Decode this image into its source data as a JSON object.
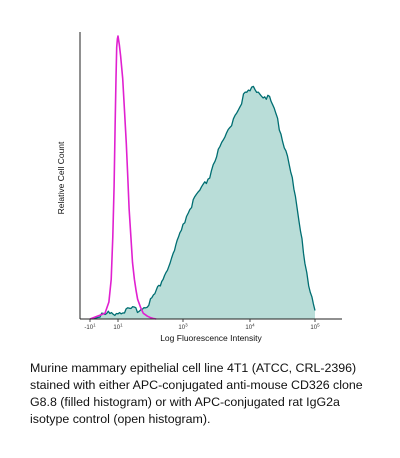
{
  "chart_data": {
    "type": "area",
    "title": "",
    "xlabel": "Log Fluorescence Intensity",
    "ylabel": "Relative Cell Count",
    "x_scale": "biexponential-log",
    "xlim": [
      -10,
      100000
    ],
    "ylim": [
      0,
      1
    ],
    "grid": false,
    "legend": "none",
    "x_ticks": [
      {
        "base": "-10",
        "exp": "1",
        "value": -10
      },
      {
        "base": "10",
        "exp": "1",
        "value": 10
      },
      {
        "base": "10",
        "exp": "3",
        "value": 1000
      },
      {
        "base": "10",
        "exp": "4",
        "value": 10000
      },
      {
        "base": "10",
        "exp": "5",
        "value": 100000
      }
    ],
    "series": [
      {
        "style": "open",
        "color": "#e020d0",
        "x": [
          -10,
          1,
          2,
          3,
          4,
          5,
          6,
          7,
          8,
          9,
          10,
          11,
          12,
          14,
          16,
          18,
          20,
          22,
          25,
          28,
          32,
          36,
          40,
          50,
          60,
          70,
          80,
          100,
          120,
          150
        ],
        "y": [
          0,
          0.02,
          0.06,
          0.14,
          0.29,
          0.47,
          0.68,
          0.85,
          0.96,
          0.99,
          1.0,
          0.97,
          0.93,
          0.85,
          0.73,
          0.62,
          0.5,
          0.39,
          0.29,
          0.2,
          0.14,
          0.1,
          0.07,
          0.04,
          0.02,
          0.015,
          0.01,
          0.005,
          0.002,
          0
        ]
      },
      {
        "style": "filled",
        "color": "#006e72",
        "fill": "#b9ddd8",
        "x": [
          -10,
          1,
          10,
          50,
          70,
          100,
          150,
          200,
          300,
          400,
          500,
          600,
          800,
          1000,
          1200,
          1500,
          2000,
          2500,
          3000,
          4000,
          5000,
          6000,
          7000,
          8000,
          10000,
          12000,
          15000,
          20000,
          25000,
          30000,
          40000,
          50000,
          60000,
          70000,
          80000,
          100000
        ],
        "y": [
          0,
          0.01,
          0.02,
          0.03,
          0.04,
          0.06,
          0.09,
          0.12,
          0.16,
          0.19,
          0.22,
          0.25,
          0.29,
          0.33,
          0.37,
          0.42,
          0.46,
          0.5,
          0.56,
          0.62,
          0.67,
          0.72,
          0.75,
          0.78,
          0.8,
          0.81,
          0.79,
          0.77,
          0.72,
          0.65,
          0.55,
          0.42,
          0.3,
          0.2,
          0.12,
          0.03
        ]
      }
    ]
  },
  "caption": "Murine mammary epithelial cell line 4T1 (ATCC, CRL-2396) stained with either APC-conjugated anti-mouse CD326 clone G8.8 (filled histogram) or with APC-conjugated rat IgG2a isotype control (open histogram)."
}
